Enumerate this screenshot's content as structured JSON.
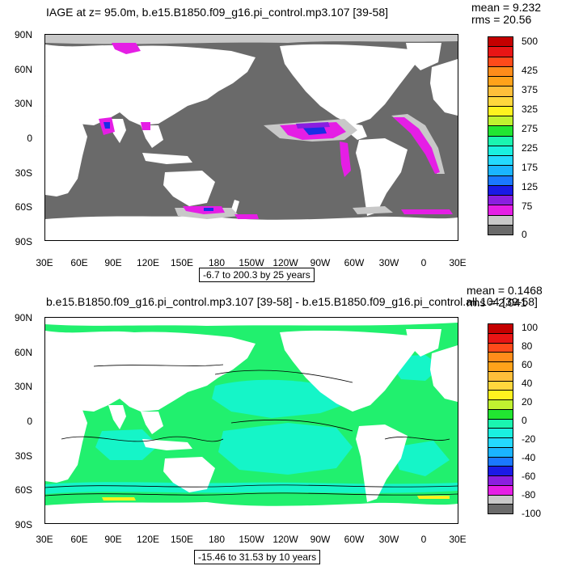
{
  "top": {
    "title": "IAGE at z=  95.0m, b.e15.B1850.f09_g16.pi_control.mp3.107 [39-58]",
    "mean": "mean = 9.232",
    "rms": "rms = 20.56",
    "y_ticks": [
      "90N",
      "60N",
      "30N",
      "0",
      "30S",
      "60S",
      "90S"
    ],
    "x_ticks": [
      "30E",
      "60E",
      "90E",
      "120E",
      "150E",
      "180",
      "150W",
      "120W",
      "90W",
      "60W",
      "30W",
      "0",
      "30E"
    ],
    "range_label": "-6.7 to 200.3 by 25 years",
    "colorbar_labels": [
      "500",
      "425",
      "375",
      "325",
      "275",
      "225",
      "175",
      "125",
      "75",
      "0"
    ]
  },
  "bottom": {
    "title": "b.e15.B1850.f09_g16.pi_control.mp3.107 [39-58] - b.e15.B1850.f09_g16.pi_control.all.104 [39-58]",
    "mean": "mean = 0.1468",
    "rms": "rms = 2.041",
    "y_ticks": [
      "90N",
      "60N",
      "30N",
      "0",
      "30S",
      "60S",
      "90S"
    ],
    "x_ticks": [
      "30E",
      "60E",
      "90E",
      "120E",
      "150E",
      "180",
      "150W",
      "120W",
      "90W",
      "60W",
      "30W",
      "0",
      "30E"
    ],
    "range_label": "-15.46 to 31.53 by 10 years",
    "colorbar_labels": [
      "100",
      "80",
      "60",
      "40",
      "20",
      "0",
      "-20",
      "-40",
      "-60",
      "-80",
      "-100"
    ]
  },
  "colors": {
    "ocean_top": "#6a6a6a",
    "land": "#ffffff",
    "ocean_bottom_main": "#21f06e",
    "ocean_bottom_cyan": "#15f5c8",
    "anomaly_magenta": "#e51ee5",
    "anomaly_purple": "#8a1ee0",
    "anomaly_blue": "#1a2ee6",
    "light_gray": "#c8c8c8",
    "colorbar_top": [
      "#c40000",
      "#e81515",
      "#ff4a1a",
      "#ff8c1a",
      "#ffa21a",
      "#ffbf3a",
      "#ffd73d",
      "#fff21f",
      "#c0f230",
      "#21e631",
      "#1af5b0",
      "#1af0e0",
      "#24d9ff",
      "#1ab4ff",
      "#1a78ff",
      "#1a1ae6",
      "#8a1ee0",
      "#e51ee5",
      "#c8c8c8",
      "#6a6a6a"
    ],
    "colorbar_bottom": [
      "#c40000",
      "#e81515",
      "#ff4a1a",
      "#ff8c1a",
      "#ffa21a",
      "#ffbf3a",
      "#ffd73d",
      "#fff21f",
      "#c0f230",
      "#21e631",
      "#1af5b0",
      "#1af0e0",
      "#24d9ff",
      "#1ab4ff",
      "#1a78ff",
      "#1a1ae6",
      "#8a1ee0",
      "#e51ee5",
      "#c8c8c8",
      "#6a6a6a"
    ]
  }
}
